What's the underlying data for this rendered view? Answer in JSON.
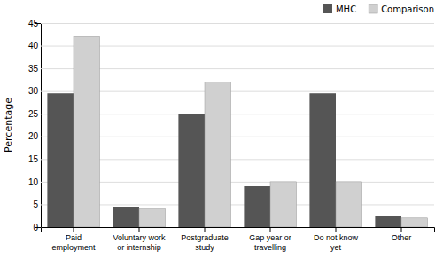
{
  "chart_data": {
    "type": "bar",
    "categories": [
      "Paid\nemployment",
      "Voluntary work\nor internship",
      "Postgraduate\nstudy",
      "Gap year or\ntravelling",
      "Do not know\nyet",
      "Other"
    ],
    "series": [
      {
        "name": "MHC",
        "color": "#555555",
        "values": [
          29.5,
          4.5,
          25.0,
          9.0,
          29.5,
          2.5
        ]
      },
      {
        "name": "Comparison",
        "color": "#d0d0d0",
        "values": [
          42.0,
          4.0,
          32.0,
          10.0,
          10.0,
          2.0
        ]
      }
    ],
    "ylabel": "Percentage",
    "ylim": [
      0,
      45
    ],
    "yticks": [
      0,
      5,
      10,
      15,
      20,
      25,
      30,
      35,
      40,
      45
    ],
    "grid": true,
    "legend": "upper right"
  }
}
